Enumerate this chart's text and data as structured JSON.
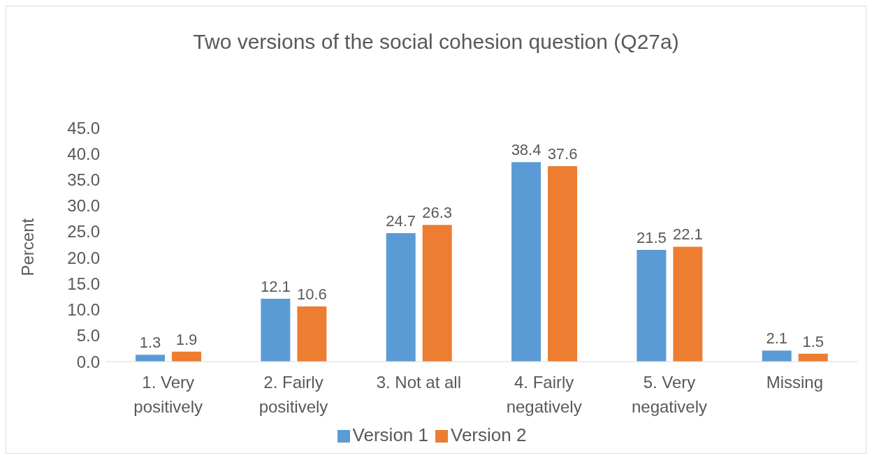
{
  "chart_data": {
    "type": "bar",
    "title": "Two versions of the social cohesion question (Q27a)",
    "ylabel": "Percent",
    "categories": [
      "1. Very positively",
      "2. Fairly positively",
      "3. Not at all",
      "4. Fairly negatively",
      "5. Very negatively",
      "Missing"
    ],
    "series": [
      {
        "name": "Version 1",
        "color": "#5b9bd5",
        "values": [
          1.3,
          12.1,
          24.7,
          38.4,
          21.5,
          2.1
        ]
      },
      {
        "name": "Version 2",
        "color": "#ed7d31",
        "values": [
          1.9,
          10.6,
          26.3,
          37.6,
          22.1,
          1.5
        ]
      }
    ],
    "ylim": [
      0,
      45
    ],
    "yticks": [
      {
        "value": 0,
        "label": "0.0"
      },
      {
        "value": 5,
        "label": "5.0"
      },
      {
        "value": 10,
        "label": "10.0"
      },
      {
        "value": 15,
        "label": "15.0"
      },
      {
        "value": 20,
        "label": "20.0"
      },
      {
        "value": 25,
        "label": "25.0"
      },
      {
        "value": 30,
        "label": "30.0"
      },
      {
        "value": 35,
        "label": "35.0"
      },
      {
        "value": 40,
        "label": "40.0"
      },
      {
        "value": 45,
        "label": "45.0"
      }
    ],
    "grid": false,
    "legend": "bottom",
    "data_labels": true
  }
}
